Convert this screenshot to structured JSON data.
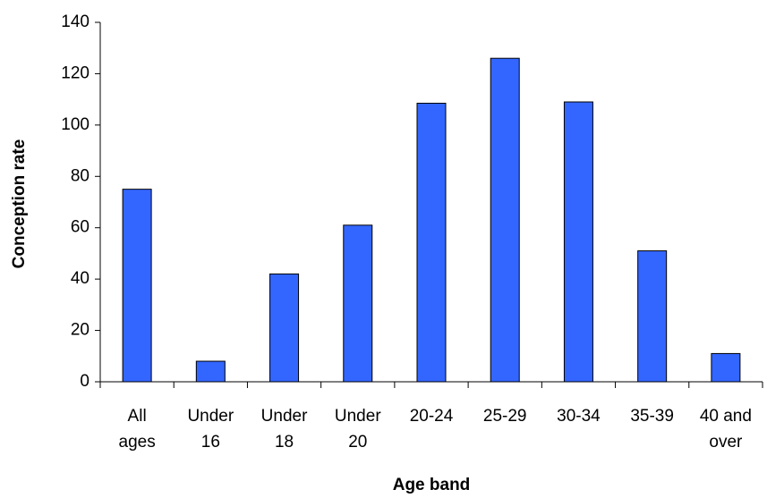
{
  "chart_data": {
    "type": "bar",
    "xlabel": "Age band",
    "ylabel": "Conception rate",
    "categories": [
      "All ages",
      "Under 16",
      "Under 18",
      "Under 20",
      "20-24",
      "25-29",
      "30-34",
      "35-39",
      "40 and over"
    ],
    "values": [
      75,
      8,
      42,
      61,
      108.5,
      126,
      109,
      51,
      11
    ],
    "color": "#3366ff",
    "ylim": [
      0,
      140
    ],
    "yticks": [
      0,
      20,
      40,
      60,
      80,
      100,
      120,
      140
    ],
    "grid": false
  }
}
